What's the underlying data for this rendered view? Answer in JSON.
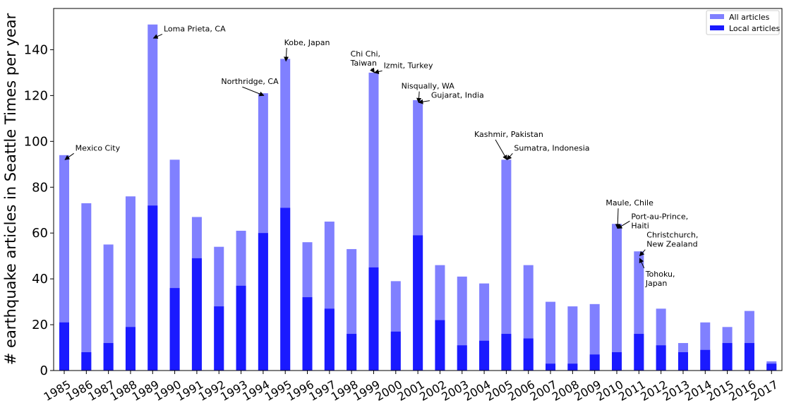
{
  "chart_data": {
    "type": "bar",
    "ylabel": "# earthquake articles in Seattle Times per year",
    "ylim": [
      0,
      158
    ],
    "yticks": [
      0,
      20,
      40,
      60,
      80,
      100,
      120,
      140
    ],
    "categories": [
      "1985",
      "1986",
      "1987",
      "1988",
      "1989",
      "1990",
      "1991",
      "1992",
      "1993",
      "1994",
      "1995",
      "1996",
      "1997",
      "1998",
      "1999",
      "2000",
      "2001",
      "2002",
      "2003",
      "2004",
      "2005",
      "2006",
      "2007",
      "2008",
      "2009",
      "2010",
      "2011",
      "2012",
      "2013",
      "2014",
      "2015",
      "2016",
      "2017"
    ],
    "series": [
      {
        "name": "All articles",
        "color": "#8080ff",
        "values": [
          94,
          73,
          55,
          76,
          151,
          92,
          67,
          54,
          61,
          121,
          136,
          56,
          65,
          53,
          130,
          39,
          118,
          46,
          41,
          38,
          92,
          46,
          30,
          28,
          29,
          64,
          52,
          27,
          12,
          21,
          19,
          26,
          4
        ]
      },
      {
        "name": "Local articles",
        "color": "#1a1aff",
        "values": [
          21,
          8,
          12,
          19,
          72,
          36,
          49,
          28,
          37,
          60,
          71,
          32,
          27,
          16,
          45,
          17,
          59,
          22,
          11,
          13,
          16,
          14,
          3,
          3,
          7,
          8,
          16,
          11,
          8,
          9,
          12,
          12,
          3
        ]
      }
    ],
    "legend_position": "top-right",
    "annotations": [
      {
        "lines": [
          "Mexico City"
        ],
        "x": "1985",
        "y": 92,
        "text_x": 1985.5,
        "text_y": 96
      },
      {
        "lines": [
          "Loma Prieta, CA"
        ],
        "x": "1989",
        "y": 145,
        "text_x": 1989.5,
        "text_y": 148
      },
      {
        "lines": [
          "Northridge, CA"
        ],
        "x": "1994",
        "y": 120,
        "text_x": 1992.1,
        "text_y": 125
      },
      {
        "lines": [
          "Kobe, Japan"
        ],
        "x": "1995",
        "y": 135,
        "text_x": 1994.95,
        "text_y": 142
      },
      {
        "lines": [
          "Chi Chi,",
          "Taiwan"
        ],
        "x": "1999",
        "y": 130,
        "text_x": 1997.95,
        "text_y": 137
      },
      {
        "lines": [
          "Izmit, Turkey"
        ],
        "x": "1999",
        "y": 130,
        "text_x": 1999.45,
        "text_y": 132
      },
      {
        "lines": [
          "Nisqually, WA"
        ],
        "x": "2001",
        "y": 117,
        "text_x": 2000.25,
        "text_y": 123
      },
      {
        "lines": [
          "Gujarat, India"
        ],
        "x": "2001",
        "y": 117,
        "text_x": 2001.6,
        "text_y": 119
      },
      {
        "lines": [
          "Kashmir, Pakistan"
        ],
        "x": "2005",
        "y": 92,
        "text_x": 2003.55,
        "text_y": 102
      },
      {
        "lines": [
          "Sumatra, Indonesia"
        ],
        "x": "2005",
        "y": 92,
        "text_x": 2005.35,
        "text_y": 96
      },
      {
        "lines": [
          "Maule, Chile"
        ],
        "x": "2010",
        "y": 62,
        "text_x": 2009.5,
        "text_y": 72
      },
      {
        "lines": [
          "Port-au-Prince,",
          "Haiti"
        ],
        "x": "2010",
        "y": 62,
        "text_x": 2010.65,
        "text_y": 66
      },
      {
        "lines": [
          "Christchurch,",
          "New Zealand"
        ],
        "x": "2011",
        "y": 50,
        "text_x": 2011.35,
        "text_y": 58
      },
      {
        "lines": [
          "Tohoku,",
          "Japan"
        ],
        "x": "2011",
        "y": 49,
        "text_x": 2011.3,
        "text_y": 41
      }
    ]
  }
}
